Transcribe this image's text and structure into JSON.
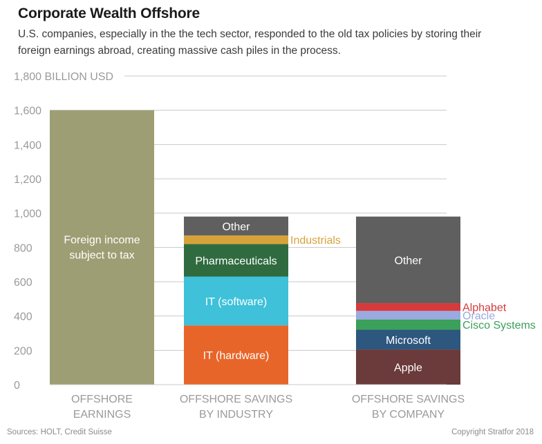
{
  "title": "Corporate Wealth Offshore",
  "subtitle": "U.S. companies, especially in the the tech sector, responded to the old tax policies by storing their foreign earnings abroad, creating massive cash piles in the process.",
  "footer": {
    "source": "Sources: HOLT, Credit Suisse",
    "copyright": "Copyright Stratfor 2018"
  },
  "chart_data": {
    "type": "bar",
    "stacked": true,
    "ylim": [
      0,
      1800
    ],
    "yticks": [
      0,
      200,
      400,
      600,
      800,
      1000,
      1200,
      1400,
      1600,
      1800
    ],
    "ytick_labels": [
      "0",
      "200",
      "400",
      "600",
      "800",
      "1,000",
      "1,200",
      "1,400",
      "1,600",
      "1,800 BILLION USD"
    ],
    "grid": true,
    "categories": [
      [
        "OFFSHORE",
        "EARNINGS"
      ],
      [
        "OFFSHORE SAVINGS",
        "BY INDUSTRY"
      ],
      [
        "OFFSHORE SAVINGS",
        "BY COMPANY"
      ]
    ],
    "bars": [
      {
        "segments": [
          {
            "name": "Foreign income subject to tax",
            "label_lines": [
              "Foreign income",
              "subject to tax"
            ],
            "value": 1600,
            "color": "#9e9e74",
            "label_position": "top-inside",
            "label_color": "#ffffff"
          }
        ]
      },
      {
        "segments": [
          {
            "name": "IT (hardware)",
            "value": 345,
            "color": "#e8652a",
            "label_position": "inside",
            "label_color": "#ffffff"
          },
          {
            "name": "IT (software)",
            "value": 285,
            "color": "#3ec1d9",
            "label_position": "inside",
            "label_color": "#ffffff"
          },
          {
            "name": "Pharmaceuticals",
            "value": 190,
            "color": "#2f6b3f",
            "label_position": "inside",
            "label_color": "#ffffff"
          },
          {
            "name": "Industrials",
            "value": 50,
            "color": "#d8a23a",
            "label_position": "outside-right",
            "label_color": "#d8a23a"
          },
          {
            "name": "Other",
            "value": 110,
            "color": "#5f5f5f",
            "label_position": "inside",
            "label_color": "#ffffff"
          }
        ]
      },
      {
        "segments": [
          {
            "name": "Apple",
            "value": 205,
            "color": "#6b3a3a",
            "label_position": "inside",
            "label_color": "#ffffff"
          },
          {
            "name": "Microsoft",
            "value": 115,
            "color": "#2d577f",
            "label_position": "inside",
            "label_color": "#ffffff"
          },
          {
            "name": "Cisco Systems",
            "value": 60,
            "color": "#3aa05a",
            "label_position": "outside-right",
            "label_color": "#3aa05a"
          },
          {
            "name": "Oracle",
            "value": 50,
            "color": "#9aa9e0",
            "label_position": "outside-right",
            "label_color": "#9aa9e0"
          },
          {
            "name": "Alphabet",
            "value": 45,
            "color": "#d63a3a",
            "label_position": "outside-right",
            "label_color": "#d63a3a"
          },
          {
            "name": "Other",
            "value": 505,
            "color": "#5f5f5f",
            "label_position": "inside",
            "label_color": "#ffffff"
          }
        ]
      }
    ]
  }
}
